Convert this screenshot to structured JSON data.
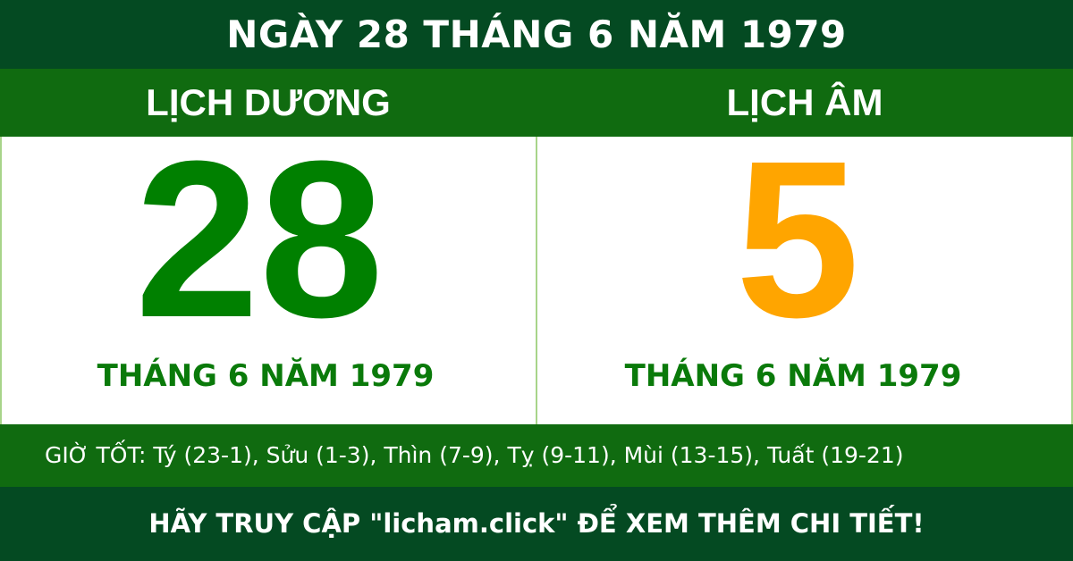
{
  "title": "NGÀY 28 THÁNG 6 NĂM 1979",
  "solar": {
    "label": "LỊCH DƯƠNG",
    "day": "28",
    "month_year": "THÁNG 6 NĂM 1979",
    "color": "#008000"
  },
  "lunar": {
    "label": "LỊCH ÂM",
    "day": "5",
    "month_year": "THÁNG 6 NĂM 1979",
    "color": "#ffa500"
  },
  "good_hours": "GIỜ TỐT: Tý (23-1), Sửu (1-3), Thìn (7-9), Tỵ (9-11), Mùi (13-15), Tuất (19-21)",
  "footer": "HÃY TRUY CẬP \"licham.click\" ĐỂ XEM THÊM CHI TIẾT!",
  "colors": {
    "dark_green": "#044a22",
    "green": "#106b10"
  }
}
